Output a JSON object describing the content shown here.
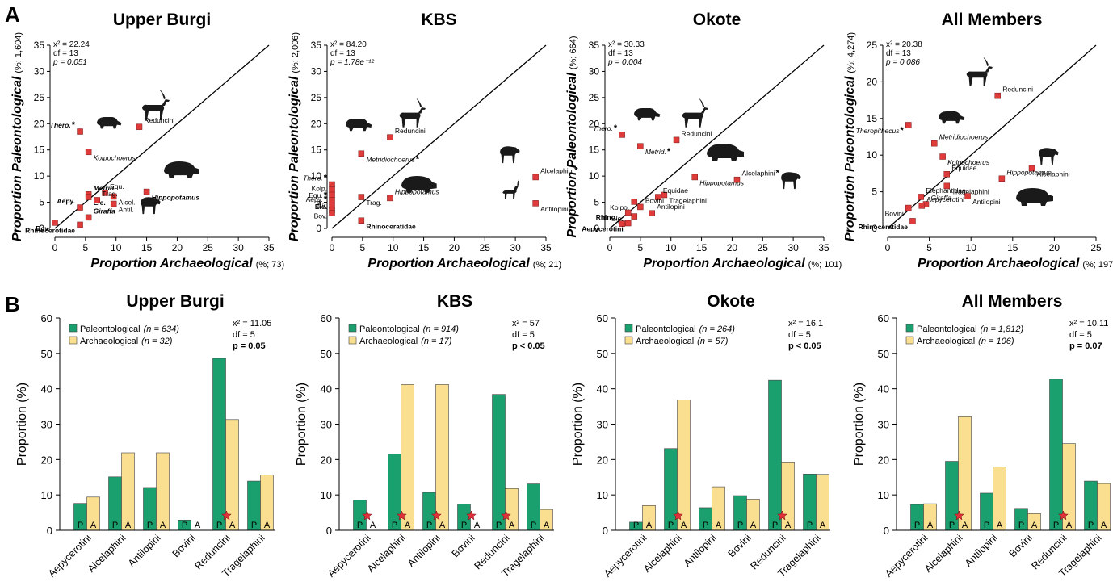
{
  "panel_labels": [
    "A",
    "B"
  ],
  "colors": {
    "paleo": "#1aa06e",
    "arch": "#f9df8f",
    "scatter_point": "#e03b3b",
    "star": "#e0303a",
    "axis": "#000000",
    "silhouette": "#1a1a1a"
  },
  "scatter_axis_titles": {
    "y": "Proportion Paleontological",
    "x": "Proportion Archaeological"
  },
  "bar_axis_title_y": "Proportion (%)",
  "chart_data": [
    {
      "type": "scatter",
      "title": "Upper Burgi",
      "y_suffix": "(%; 1,604)",
      "x_suffix": "(%; 73)",
      "xlim": [
        0,
        35
      ],
      "ylim": [
        0,
        35
      ],
      "xticks": [
        0,
        5,
        10,
        15,
        20,
        25,
        30,
        35
      ],
      "yticks": [
        0,
        5,
        10,
        15,
        20,
        25,
        30,
        35
      ],
      "stats": [
        "x² = 22.24",
        "df = 13",
        "p = 0.051"
      ],
      "points": [
        {
          "label": "Thero.",
          "x": 4.1,
          "y": 18.5,
          "italic": true,
          "bold": true,
          "star": true
        },
        {
          "label": "Kolpochoerus",
          "x": 5.5,
          "y": 14.6,
          "italic": true,
          "bold": false,
          "star": false
        },
        {
          "label": "Reduncini",
          "x": 13.8,
          "y": 19.4,
          "italic": false,
          "bold": false,
          "star": false
        },
        {
          "label": "Hippopotamus",
          "x": 15,
          "y": 7,
          "italic": true,
          "bold": true,
          "star": false
        },
        {
          "label": "Metrid.",
          "x": 5.5,
          "y": 6.5,
          "italic": true,
          "bold": true,
          "star": false
        },
        {
          "label": "Ele.",
          "x": 5.5,
          "y": 6.0,
          "italic": false,
          "bold": true,
          "star": false
        },
        {
          "label": "Equ.",
          "x": 8.2,
          "y": 6.8,
          "italic": false,
          "bold": false,
          "star": false
        },
        {
          "label": "Alcel.",
          "x": 9.6,
          "y": 6.1,
          "italic": false,
          "bold": false,
          "star": false
        },
        {
          "label": "Trag.",
          "x": 6.9,
          "y": 5.4,
          "italic": false,
          "bold": false,
          "star": false
        },
        {
          "label": "Antil.",
          "x": 9.6,
          "y": 4.7,
          "italic": false,
          "bold": false,
          "star": false
        },
        {
          "label": "Aepy.",
          "x": 4.1,
          "y": 4.0,
          "italic": false,
          "bold": true,
          "star": false
        },
        {
          "label": "Bov.",
          "x": 0,
          "y": 1.1,
          "italic": false,
          "bold": true,
          "star": false
        },
        {
          "label": "Giraffa",
          "x": 5.5,
          "y": 2.1,
          "italic": true,
          "bold": true,
          "star": false
        },
        {
          "label": "Rhinocerotidae",
          "x": 4.1,
          "y": 0.7,
          "italic": false,
          "bold": true,
          "star": false
        }
      ]
    },
    {
      "type": "scatter",
      "title": "KBS",
      "y_suffix": "(%; 2,006)",
      "x_suffix": "(%; 21)",
      "xlim": [
        0,
        35
      ],
      "ylim": [
        0,
        35
      ],
      "xticks": [
        0,
        5,
        10,
        15,
        20,
        25,
        30,
        35
      ],
      "yticks": [
        0,
        5,
        10,
        15,
        20,
        25,
        30,
        35
      ],
      "stats": [
        "x² = 84.20",
        "df = 13",
        "p = 1.78e⁻¹²"
      ],
      "points": [
        {
          "label": "Reduncini",
          "x": 9.5,
          "y": 17.4,
          "italic": false,
          "bold": false,
          "star": false
        },
        {
          "label": "Metridiochoerus",
          "x": 4.8,
          "y": 14.3,
          "italic": true,
          "bold": false,
          "star": true
        },
        {
          "label": "Thero.",
          "x": 0,
          "y": 8.4,
          "italic": true,
          "bold": false,
          "star": true
        },
        {
          "label": "Equ.",
          "x": 0,
          "y": 7.4,
          "italic": false,
          "bold": false,
          "star": true
        },
        {
          "label": "Kolp.",
          "x": 0,
          "y": 6.4,
          "italic": false,
          "bold": false,
          "star": false
        },
        {
          "label": "Gir.",
          "x": 0,
          "y": 5.4,
          "italic": true,
          "bold": false,
          "star": false
        },
        {
          "label": "Aepy.",
          "x": 0,
          "y": 4.3,
          "italic": false,
          "bold": false,
          "star": true
        },
        {
          "label": "Bov.",
          "x": 0,
          "y": 3.5,
          "italic": false,
          "bold": false,
          "star": false
        },
        {
          "label": "Ele.",
          "x": 0,
          "y": 2.9,
          "italic": false,
          "bold": true,
          "star": false
        },
        {
          "label": "Trag.",
          "x": 4.8,
          "y": 6.0,
          "italic": false,
          "bold": false,
          "star": false
        },
        {
          "label": "Hippopotamus",
          "x": 9.5,
          "y": 5.8,
          "italic": true,
          "bold": false,
          "star": false
        },
        {
          "label": "Rhinoceratidae",
          "x": 4.8,
          "y": 1.5,
          "italic": false,
          "bold": true,
          "star": false
        },
        {
          "label": "Alcelaphini",
          "x": 33.3,
          "y": 9.8,
          "italic": false,
          "bold": false,
          "star": true
        },
        {
          "label": "Antilopini",
          "x": 33.3,
          "y": 4.8,
          "italic": false,
          "bold": false,
          "star": true
        }
      ]
    },
    {
      "type": "scatter",
      "title": "Okote",
      "y_suffix": "(%; 664)",
      "x_suffix": "(%; 101)",
      "xlim": [
        0,
        35
      ],
      "ylim": [
        0,
        35
      ],
      "xticks": [
        0,
        5,
        10,
        15,
        20,
        25,
        30,
        35
      ],
      "yticks": [
        0,
        5,
        10,
        15,
        20,
        25,
        30,
        35
      ],
      "stats": [
        "x² = 30.33",
        "df = 13",
        "p = 0.004"
      ],
      "points": [
        {
          "label": "Thero.",
          "x": 2,
          "y": 17.9,
          "italic": true,
          "bold": false,
          "star": true
        },
        {
          "label": "Metrid.",
          "x": 5,
          "y": 15.7,
          "italic": true,
          "bold": false,
          "star": true
        },
        {
          "label": "Reduncini",
          "x": 10.9,
          "y": 16.9,
          "italic": false,
          "bold": false,
          "star": false
        },
        {
          "label": "Hippopotamus",
          "x": 13.9,
          "y": 9.8,
          "italic": true,
          "bold": false,
          "star": false
        },
        {
          "label": "Alcelaphini",
          "x": 20.8,
          "y": 9.3,
          "italic": false,
          "bold": false,
          "star": true
        },
        {
          "label": "Tragelaphini",
          "x": 8.9,
          "y": 6.4,
          "italic": false,
          "bold": false,
          "star": false
        },
        {
          "label": "Equidae",
          "x": 7.9,
          "y": 6.0,
          "italic": false,
          "bold": false,
          "star": false
        },
        {
          "label": "Kolpo.",
          "x": 4,
          "y": 5.1,
          "italic": false,
          "bold": false,
          "star": false
        },
        {
          "label": "Bovini",
          "x": 5,
          "y": 4.1,
          "italic": false,
          "bold": false,
          "star": false
        },
        {
          "label": "Ele.",
          "x": 3,
          "y": 3.0,
          "italic": false,
          "bold": false,
          "star": false
        },
        {
          "label": "Antilopini",
          "x": 6.9,
          "y": 2.9,
          "italic": false,
          "bold": false,
          "star": false
        },
        {
          "label": "Gir.",
          "x": 4,
          "y": 2.3,
          "italic": true,
          "bold": true,
          "star": false
        },
        {
          "label": "Rhino.",
          "x": 2,
          "y": 0.9,
          "italic": false,
          "bold": true,
          "star": false
        },
        {
          "label": "Aepycerotini",
          "x": 3,
          "y": 1.0,
          "italic": false,
          "bold": true,
          "star": false
        }
      ]
    },
    {
      "type": "scatter",
      "title": "All Members",
      "y_suffix": "(%; 4,274)",
      "x_suffix": "(%; 197)",
      "xlim": [
        0,
        25
      ],
      "ylim": [
        0,
        25
      ],
      "xticks": [
        0,
        5,
        10,
        15,
        20,
        25
      ],
      "yticks": [
        0,
        5,
        10,
        15,
        20,
        25
      ],
      "stats": [
        "x² = 20.38",
        "df = 13",
        "p = 0.086"
      ],
      "points": [
        {
          "label": "Reduncini",
          "x": 13.2,
          "y": 18.1,
          "italic": false,
          "bold": false,
          "star": false
        },
        {
          "label": "Theropithecus",
          "x": 2.5,
          "y": 14.1,
          "italic": true,
          "bold": false,
          "star": true
        },
        {
          "label": "Metridiochoerus",
          "x": 5.6,
          "y": 11.6,
          "italic": true,
          "bold": false,
          "star": false
        },
        {
          "label": "Kolpochoerus",
          "x": 6.6,
          "y": 9.8,
          "italic": true,
          "bold": false,
          "star": false
        },
        {
          "label": "Equidae",
          "x": 7.1,
          "y": 7.4,
          "italic": false,
          "bold": false,
          "star": false
        },
        {
          "label": "Alcelaphini",
          "x": 17.3,
          "y": 8.2,
          "italic": false,
          "bold": false,
          "star": false
        },
        {
          "label": "Hippopotamus",
          "x": 13.7,
          "y": 6.8,
          "italic": true,
          "bold": false,
          "star": false
        },
        {
          "label": "Tragelaphini",
          "x": 7.1,
          "y": 5.8,
          "italic": false,
          "bold": false,
          "star": false
        },
        {
          "label": "Elephantidae",
          "x": 4,
          "y": 4.3,
          "italic": false,
          "bold": false,
          "star": false
        },
        {
          "label": "Bovini",
          "x": 2.5,
          "y": 2.8,
          "italic": false,
          "bold": false,
          "star": false
        },
        {
          "label": "Giraffa",
          "x": 4.6,
          "y": 3.3,
          "italic": true,
          "bold": false,
          "star": false
        },
        {
          "label": "Antilopini",
          "x": 9.6,
          "y": 4.4,
          "italic": false,
          "bold": false,
          "star": false
        },
        {
          "label": "Aepycerotini",
          "x": 4.1,
          "y": 3.1,
          "italic": false,
          "bold": false,
          "star": false
        },
        {
          "label": "Rhinoceratidae",
          "x": 3.0,
          "y": 1.0,
          "italic": false,
          "bold": true,
          "star": false
        }
      ]
    },
    {
      "type": "bar",
      "title": "Upper Burgi",
      "categories": [
        "Aepycerotini",
        "Alcelaphini",
        "Antilopini",
        "Bovini",
        "Reduncini",
        "Tragelaphini"
      ],
      "ylim": [
        0,
        60
      ],
      "yticks": [
        0,
        10,
        20,
        30,
        40,
        50,
        60
      ],
      "series": [
        {
          "name": "Paleontological",
          "n_text": "(n = 634)",
          "values": [
            7.6,
            15.1,
            12.1,
            2.9,
            48.6,
            13.9
          ]
        },
        {
          "name": "Archaeological",
          "n_text": "(n = 32)",
          "values": [
            9.4,
            21.9,
            21.9,
            0,
            31.3,
            15.6
          ]
        }
      ],
      "stars": [
        4
      ],
      "stats": [
        "x² = 11.05",
        "df = 5",
        "p = 0.05"
      ],
      "bar_letters": [
        "P",
        "A"
      ]
    },
    {
      "type": "bar",
      "title": "KBS",
      "categories": [
        "Aepycerotini",
        "Alcelaphini",
        "Antilopini",
        "Bovini",
        "Reduncini",
        "Tragelaphini"
      ],
      "ylim": [
        0,
        60
      ],
      "yticks": [
        0,
        10,
        20,
        30,
        40,
        50,
        60
      ],
      "series": [
        {
          "name": "Paleontological",
          "n_text": "(n = 914)",
          "values": [
            8.5,
            21.6,
            10.7,
            7.4,
            38.4,
            13.1
          ]
        },
        {
          "name": "Archaeological",
          "n_text": "(n = 17)",
          "values": [
            0,
            41.2,
            41.2,
            0,
            11.8,
            5.9
          ]
        }
      ],
      "stars": [
        0,
        1,
        2,
        3,
        4
      ],
      "stats": [
        "x² = 57",
        "df = 5",
        "p < 0.05"
      ],
      "bar_letters": [
        "P",
        "A"
      ]
    },
    {
      "type": "bar",
      "title": "Okote",
      "categories": [
        "Aepycerotini",
        "Alcelaphini",
        "Antilopini",
        "Bovini",
        "Reduncini",
        "Tragelaphini"
      ],
      "ylim": [
        0,
        60
      ],
      "yticks": [
        0,
        10,
        20,
        30,
        40,
        50,
        60
      ],
      "series": [
        {
          "name": "Paleontological",
          "n_text": "(n = 264)",
          "values": [
            2.3,
            23.1,
            6.4,
            9.8,
            42.4,
            15.9
          ]
        },
        {
          "name": "Archaeological",
          "n_text": "(n = 57)",
          "values": [
            7.0,
            36.8,
            12.3,
            8.8,
            19.3,
            15.8
          ]
        }
      ],
      "stars": [
        1,
        4
      ],
      "stats": [
        "x² = 16.1",
        "df = 5",
        "p < 0.05"
      ],
      "bar_letters": [
        "P",
        "A"
      ]
    },
    {
      "type": "bar",
      "title": "All Members",
      "categories": [
        "Aepycerotini",
        "Alcelaphini",
        "Antilopini",
        "Bovini",
        "Reduncini",
        "Tragelaphini"
      ],
      "ylim": [
        0,
        60
      ],
      "yticks": [
        0,
        10,
        20,
        30,
        40,
        50,
        60
      ],
      "series": [
        {
          "name": "Paleontological",
          "n_text": "(n = 1,812)",
          "values": [
            7.3,
            19.5,
            10.5,
            6.2,
            42.7,
            13.9
          ]
        },
        {
          "name": "Archaeological",
          "n_text": "(n = 106)",
          "values": [
            7.5,
            32.1,
            17.9,
            4.7,
            24.5,
            13.2
          ]
        }
      ],
      "stars": [
        1,
        4
      ],
      "stats": [
        "x² = 10.11",
        "df = 5",
        "p = 0.07"
      ],
      "bar_letters": [
        "P",
        "A"
      ]
    }
  ]
}
